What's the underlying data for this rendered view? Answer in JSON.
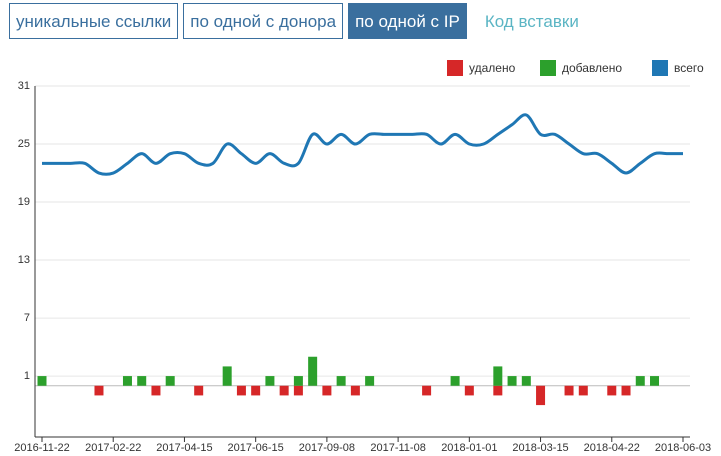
{
  "tabs": [
    "уникальные ссылки",
    "по одной с донора",
    "по одной с IP",
    "Код вставки"
  ],
  "active_tab": 2,
  "chart_data": {
    "type": "bar-line",
    "categories": [
      "2016-11-22",
      null,
      null,
      null,
      null,
      "2017-02-22",
      null,
      null,
      null,
      null,
      "2017-04-15",
      null,
      null,
      null,
      null,
      "2017-06-15",
      null,
      null,
      null,
      null,
      "2017-09-08",
      null,
      null,
      null,
      null,
      "2017-11-08",
      null,
      null,
      null,
      null,
      "2018-01-01",
      null,
      null,
      null,
      null,
      "2018-03-15",
      null,
      null,
      null,
      null,
      "2018-04-22",
      null,
      null,
      null,
      null,
      "2018-06-03"
    ],
    "series": [
      {
        "name": "удалено",
        "color": "#d62728",
        "kind": "bar",
        "values": [
          null,
          null,
          null,
          null,
          -1,
          null,
          null,
          null,
          -1,
          null,
          null,
          -1,
          null,
          null,
          -1,
          -1,
          null,
          -1,
          -1,
          null,
          -1,
          null,
          -1,
          null,
          null,
          null,
          null,
          -1,
          null,
          null,
          -1,
          null,
          -1,
          null,
          null,
          -2,
          null,
          -1,
          -1,
          null,
          -1,
          -1,
          null,
          null,
          null,
          null
        ]
      },
      {
        "name": "добавлено",
        "color": "#2ca02c",
        "kind": "bar",
        "values": [
          1,
          null,
          null,
          null,
          null,
          null,
          1,
          1,
          null,
          1,
          null,
          null,
          null,
          2,
          null,
          null,
          1,
          null,
          1,
          3,
          null,
          1,
          null,
          1,
          null,
          null,
          null,
          null,
          null,
          1,
          null,
          null,
          2,
          1,
          1,
          null,
          null,
          null,
          null,
          null,
          null,
          null,
          1,
          1,
          null,
          null
        ]
      },
      {
        "name": "всего",
        "color": "#1f77b4",
        "kind": "line",
        "values": [
          23,
          23,
          23,
          23,
          22,
          22,
          23,
          24,
          23,
          24,
          24,
          23,
          23,
          25,
          24,
          23,
          24,
          23,
          23,
          26,
          25,
          26,
          25,
          26,
          26,
          26,
          26,
          26,
          25,
          26,
          25,
          25,
          26,
          27,
          28,
          26,
          26,
          25,
          24,
          24,
          23,
          22,
          23,
          24,
          24,
          24
        ]
      }
    ],
    "ylim": [
      -5.3,
      31
    ],
    "yticks": [
      1,
      7,
      13,
      19,
      25,
      31
    ],
    "grid": true,
    "legend": "top-right"
  }
}
